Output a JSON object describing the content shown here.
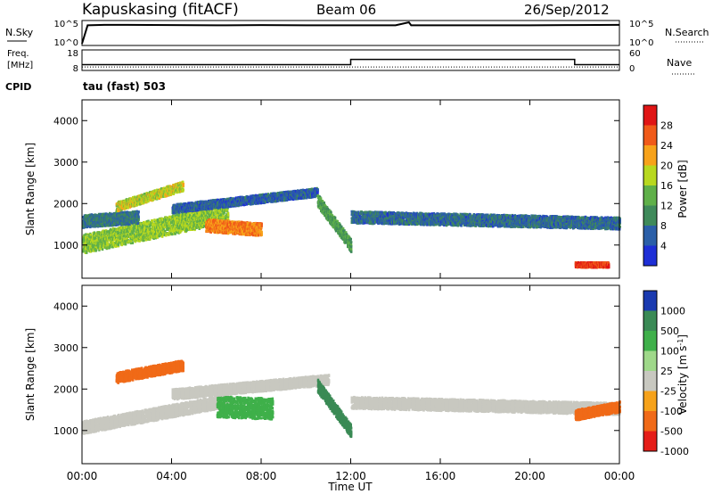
{
  "header": {
    "station": "Kapuskasing (fitACF)",
    "beam": "Beam 06",
    "date": "26/Sep/2012"
  },
  "top_panels": {
    "nsky_label": "N.Sky",
    "nsearch_label": "N.Search",
    "noise_ticks": [
      "10^5",
      "10^0"
    ],
    "freq_label": "Freq.",
    "freq_unit": "[MHz]",
    "freq_ticks": [
      "18",
      "8"
    ],
    "nave_label": "Nave",
    "nave_ticks": [
      "60",
      "0"
    ],
    "cpid_label": "CPID",
    "cpid_value": "tau (fast) 503"
  },
  "x_axis": {
    "label": "Time UT",
    "ticks": [
      "00:00",
      "04:00",
      "08:00",
      "12:00",
      "16:00",
      "20:00",
      "00:00"
    ],
    "range_hours": [
      0,
      24
    ]
  },
  "colors": {
    "power_scale": [
      "#1e2fd6",
      "#2b5fa8",
      "#3f8a5a",
      "#5fb049",
      "#b8d81f",
      "#f7a21a",
      "#f05a19",
      "#e01515"
    ],
    "velocity_scale": [
      "#1a3ab0",
      "#3a8a55",
      "#3fb04a",
      "#9fd88a",
      "#c8c8c0",
      "#f6a21a",
      "#f06a18",
      "#e51d18"
    ],
    "noise_line": "#000000"
  },
  "chart_data": [
    {
      "type": "line",
      "title": "N.Sky / N.Search",
      "x": [
        0,
        0.25,
        1,
        2,
        4,
        6,
        8,
        10,
        12,
        14,
        14.6,
        14.7,
        16,
        18,
        20,
        22,
        24
      ],
      "values_log10": [
        0.0,
        4.3,
        4.4,
        4.4,
        4.35,
        4.3,
        4.35,
        4.3,
        4.3,
        4.3,
        5.0,
        4.3,
        4.3,
        4.3,
        4.3,
        4.35,
        4.4
      ],
      "ylim": [
        "10^0",
        "10^5"
      ],
      "ylabel_left": "N.Sky",
      "ylabel_right": "N.Search"
    },
    {
      "type": "line",
      "series": [
        {
          "name": "Freq.",
          "x": [
            0,
            12,
            12,
            22,
            22,
            24
          ],
          "values": [
            10.5,
            10.5,
            13.2,
            13.2,
            10.5,
            10.5
          ]
        },
        {
          "name": "Nave",
          "x": [
            0,
            24
          ],
          "values": [
            8,
            8
          ]
        }
      ],
      "ylabel": "Freq. [MHz]",
      "ylim_freq": [
        8,
        18
      ],
      "ylim_nave": [
        0,
        60
      ],
      "cpid": "tau (fast) 503"
    },
    {
      "type": "heatmap",
      "ylabel": "Slant Range [km]",
      "ylim": [
        200,
        4500
      ],
      "yticks": [
        1000,
        2000,
        3000,
        4000
      ],
      "colorbar_label": "Power [dB]",
      "colorbar_ticks": [
        4,
        8,
        12,
        16,
        20,
        24,
        28
      ],
      "bands": [
        {
          "t_start": 0.0,
          "t_end": 6.5,
          "r_center_start": 1050,
          "r_center_end": 1800,
          "width": 450,
          "level": 16
        },
        {
          "t_start": 0.0,
          "t_end": 2.5,
          "r_center_start": 1600,
          "r_center_end": 1700,
          "width": 300,
          "level": 8
        },
        {
          "t_start": 1.5,
          "t_end": 4.5,
          "r_center_start": 1950,
          "r_center_end": 2450,
          "width": 220,
          "level": 18
        },
        {
          "t_start": 5.5,
          "t_end": 8.0,
          "r_center_start": 1500,
          "r_center_end": 1400,
          "width": 300,
          "level": 24
        },
        {
          "t_start": 4.0,
          "t_end": 10.5,
          "r_center_start": 1900,
          "r_center_end": 2300,
          "width": 200,
          "level": 6
        },
        {
          "t_start": 10.5,
          "t_end": 12.0,
          "r_center_start": 2100,
          "r_center_end": 1000,
          "width": 300,
          "level": 12
        },
        {
          "t_start": 12.0,
          "t_end": 24.0,
          "r_center_start": 1700,
          "r_center_end": 1550,
          "width": 280,
          "level": 7
        },
        {
          "t_start": 22.0,
          "t_end": 23.5,
          "r_center_start": 550,
          "r_center_end": 550,
          "width": 120,
          "level": 28
        }
      ]
    },
    {
      "type": "heatmap",
      "ylabel": "Slant Range [km]",
      "ylim": [
        200,
        4500
      ],
      "yticks": [
        1000,
        2000,
        3000,
        4000
      ],
      "colorbar_label": "Velocity [m s^-1]",
      "colorbar_ticks": [
        1000,
        500,
        100,
        25,
        -25,
        -100,
        -500,
        -1000
      ],
      "bands": [
        {
          "t_start": 0.0,
          "t_end": 6.5,
          "r_center_start": 1100,
          "r_center_end": 1750,
          "width": 300,
          "level": 0
        },
        {
          "t_start": 1.5,
          "t_end": 4.5,
          "r_center_start": 2300,
          "r_center_end": 2600,
          "width": 250,
          "level": -200
        },
        {
          "t_start": 6.0,
          "t_end": 8.5,
          "r_center_start": 1600,
          "r_center_end": 1550,
          "width": 500,
          "level": 50
        },
        {
          "t_start": 4.0,
          "t_end": 11.0,
          "r_center_start": 1900,
          "r_center_end": 2250,
          "width": 250,
          "level": 0
        },
        {
          "t_start": 10.5,
          "t_end": 12.0,
          "r_center_start": 2100,
          "r_center_end": 1000,
          "width": 300,
          "level": 150
        },
        {
          "t_start": 12.0,
          "t_end": 24.0,
          "r_center_start": 1700,
          "r_center_end": 1550,
          "width": 280,
          "level": 0
        },
        {
          "t_start": 22.0,
          "t_end": 24.0,
          "r_center_start": 1400,
          "r_center_end": 1600,
          "width": 250,
          "level": -300
        }
      ]
    }
  ]
}
